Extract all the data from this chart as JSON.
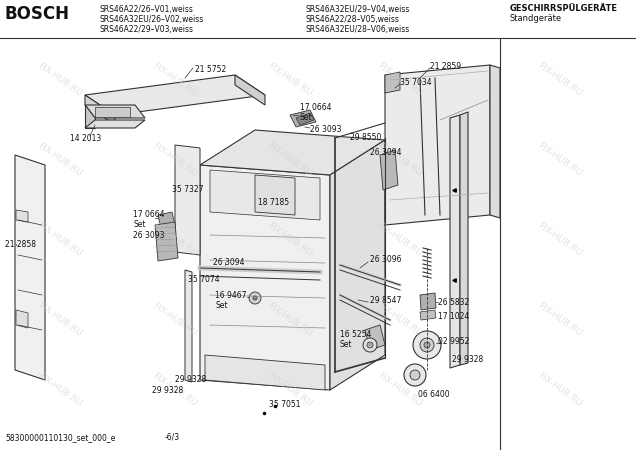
{
  "title_brand": "BOSCH",
  "model_lines_left": [
    "SRS46A22/26–V01,weiss",
    "SRS46A32EU/26–V02,weiss",
    "SRS46A22/29–V03,weiss"
  ],
  "model_lines_right": [
    "SRS46A32EU/29–V04,weiss",
    "SRS46A22/28–V05,weiss",
    "SRS46A32EU/28–V06,weiss"
  ],
  "category_line1": "GESCHIRRSPÜLGERÄTE",
  "category_line2": "Standgeräte",
  "footer": "58300000110130_set_000_e",
  "footer_page": "-6/3",
  "watermark": "FIX-HUB.RU",
  "bg_color": "#ffffff",
  "line_color": "#333333",
  "text_color": "#111111"
}
